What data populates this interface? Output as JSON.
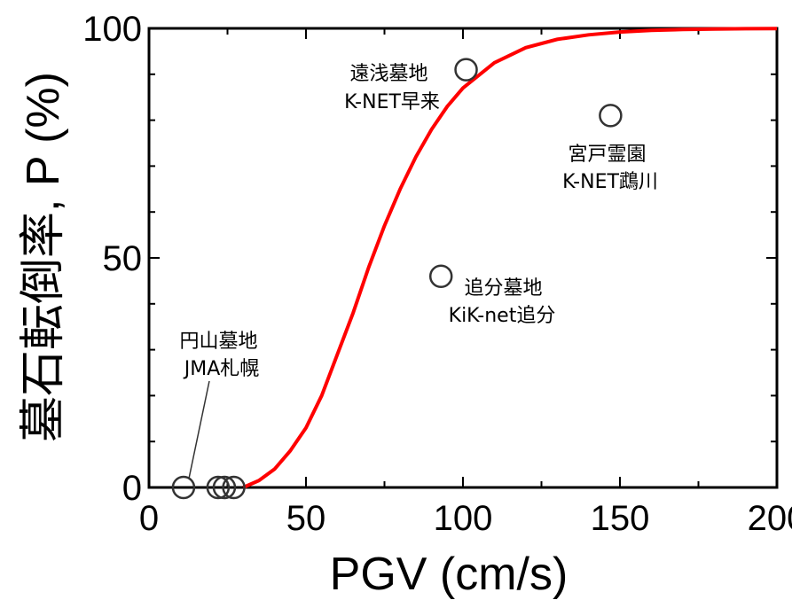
{
  "chart_data": {
    "type": "scatter",
    "xlabel": "PGV (cm/s)",
    "ylabel": "墓石転倒率, P (%)",
    "xlim": [
      0,
      200
    ],
    "ylim": [
      0,
      100
    ],
    "x_ticks": [
      0,
      50,
      100,
      150,
      200
    ],
    "y_ticks": [
      0,
      50,
      100
    ],
    "grid": false,
    "colors": {
      "curve": "#ff0000",
      "markers": "#333333",
      "axes": "#000000"
    },
    "points": [
      {
        "x": 11,
        "y": 0
      },
      {
        "x": 22,
        "y": 0
      },
      {
        "x": 24,
        "y": 0
      },
      {
        "x": 27,
        "y": 0
      },
      {
        "x": 93,
        "y": 46
      },
      {
        "x": 101,
        "y": 91
      },
      {
        "x": 147,
        "y": 81
      }
    ],
    "fit_curve": {
      "color": "#ff0000",
      "points": [
        [
          30,
          0
        ],
        [
          35,
          1.5
        ],
        [
          40,
          4
        ],
        [
          45,
          8
        ],
        [
          50,
          13
        ],
        [
          55,
          20
        ],
        [
          60,
          29
        ],
        [
          65,
          38
        ],
        [
          70,
          48
        ],
        [
          75,
          57
        ],
        [
          80,
          65
        ],
        [
          85,
          72
        ],
        [
          90,
          78
        ],
        [
          95,
          83
        ],
        [
          100,
          87
        ],
        [
          110,
          92.5
        ],
        [
          120,
          95.8
        ],
        [
          130,
          97.6
        ],
        [
          140,
          98.6
        ],
        [
          150,
          99.2
        ],
        [
          160,
          99.55
        ],
        [
          170,
          99.75
        ],
        [
          180,
          99.85
        ],
        [
          190,
          99.92
        ],
        [
          200,
          99.95
        ]
      ]
    },
    "annotations": [
      {
        "lines": [
          "遠浅墓地",
          "K-NET早来"
        ]
      },
      {
        "lines": [
          "宮戸霊園",
          "K-NET鵡川"
        ]
      },
      {
        "lines": [
          "追分墓地",
          "KiK-net追分"
        ]
      },
      {
        "lines": [
          "円山墓地",
          "JMA札幌"
        ]
      }
    ]
  }
}
